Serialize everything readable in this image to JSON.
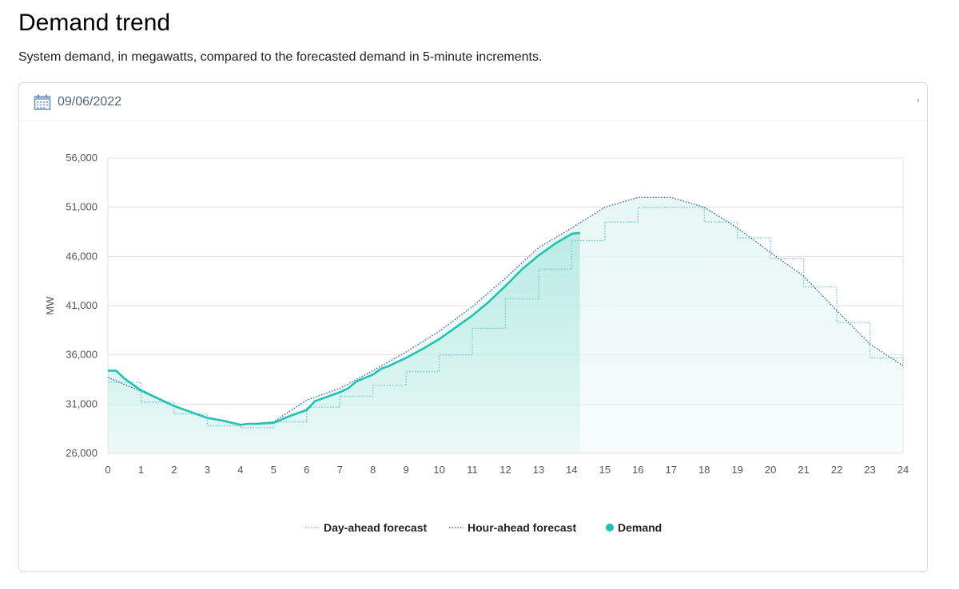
{
  "header": {
    "title": "Demand trend",
    "subtitle": "System demand, in megawatts, compared to the forecasted demand in 5-minute increments."
  },
  "date_picker": {
    "value": "09/06/2022",
    "icon": "calendar-icon"
  },
  "colors": {
    "demand": "#1ec3b3",
    "demand_fill": "#b9ebe3",
    "day_ahead": "#6fc7d1",
    "hour_ahead": "#3a5fa8",
    "grid": "#e0e0e0"
  },
  "chart_data": {
    "type": "line",
    "title": "",
    "xlabel": "",
    "ylabel": "MW",
    "xlim": [
      0,
      24
    ],
    "ylim": [
      26000,
      56000
    ],
    "x_ticks": [
      0,
      1,
      2,
      3,
      4,
      5,
      6,
      7,
      8,
      9,
      10,
      11,
      12,
      13,
      14,
      15,
      16,
      17,
      18,
      19,
      20,
      21,
      22,
      23,
      24
    ],
    "y_ticks": [
      26000,
      31000,
      36000,
      41000,
      46000,
      51000,
      56000
    ],
    "y_tick_labels": [
      "26,000",
      "31,000",
      "36,000",
      "41,000",
      "46,000",
      "51,000",
      "56,000"
    ],
    "grid": true,
    "legend_position": "bottom",
    "series": [
      {
        "name": "Day-ahead forecast",
        "style": "dotted-step",
        "x": [
          0,
          1,
          2,
          3,
          4,
          5,
          6,
          7,
          8,
          9,
          10,
          11,
          12,
          13,
          14,
          15,
          16,
          17,
          18,
          19,
          20,
          21,
          22,
          23,
          24
        ],
        "y": [
          33200,
          31200,
          30000,
          28800,
          28600,
          29200,
          30700,
          31800,
          32900,
          34300,
          36000,
          38700,
          41700,
          44700,
          47600,
          49500,
          51000,
          51000,
          49500,
          47900,
          45800,
          42900,
          39300,
          35700,
          35000
        ]
      },
      {
        "name": "Hour-ahead forecast",
        "x": [
          0,
          1,
          2,
          3,
          4,
          5,
          6,
          7,
          8,
          9,
          10,
          11,
          12,
          13,
          14,
          15,
          16,
          17,
          18,
          19,
          20,
          21,
          22,
          23,
          24
        ],
        "y": [
          33700,
          32300,
          30800,
          29600,
          28900,
          29200,
          31400,
          32600,
          34400,
          36300,
          38400,
          40900,
          43800,
          46900,
          48900,
          51000,
          52000,
          52000,
          51000,
          48900,
          46400,
          44000,
          40500,
          37100,
          34900
        ]
      },
      {
        "name": "Demand",
        "x": [
          0,
          0.25,
          0.5,
          1,
          1.5,
          2,
          2.5,
          3,
          3.5,
          4,
          4.25,
          4.5,
          5,
          5.5,
          6,
          6.25,
          6.5,
          7,
          7.25,
          7.5,
          8,
          8.25,
          8.5,
          9,
          9.5,
          10,
          10.5,
          11,
          11.5,
          12,
          12.5,
          13,
          13.5,
          14,
          14.25
        ],
        "y": [
          34400,
          34400,
          33600,
          32400,
          31600,
          30800,
          30200,
          29600,
          29300,
          28900,
          29000,
          29000,
          29100,
          29800,
          30400,
          31300,
          31600,
          32200,
          32600,
          33300,
          34000,
          34600,
          34900,
          35700,
          36600,
          37600,
          38800,
          40000,
          41400,
          43000,
          44700,
          46100,
          47300,
          48300,
          48400
        ]
      }
    ]
  }
}
